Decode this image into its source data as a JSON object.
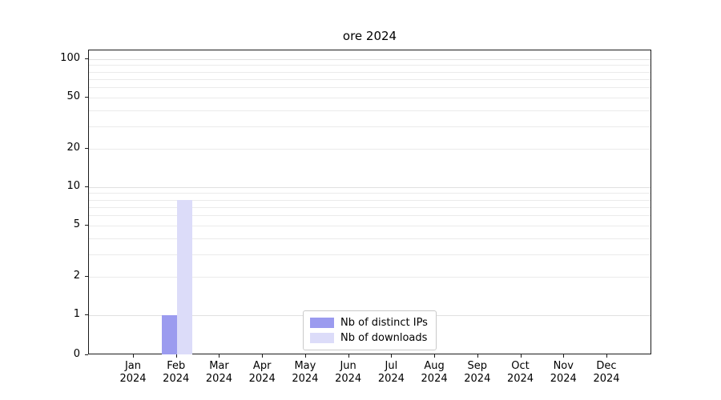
{
  "chart_data": {
    "type": "bar",
    "title": "ore 2024",
    "yscale": "symlog",
    "ylim": [
      0,
      110
    ],
    "yticks": [
      0,
      1,
      2,
      5,
      10,
      20,
      50,
      100
    ],
    "minor_grid": [
      2,
      3,
      4,
      5,
      6,
      7,
      8,
      9,
      20,
      30,
      40,
      50,
      60,
      70,
      80,
      90
    ],
    "major_grid": [
      1,
      10,
      100
    ],
    "x_ticklabels": [
      [
        "Jan",
        "2024"
      ],
      [
        "Feb",
        "2024"
      ],
      [
        "Mar",
        "2024"
      ],
      [
        "Apr",
        "2024"
      ],
      [
        "May",
        "2024"
      ],
      [
        "Jun",
        "2024"
      ],
      [
        "Jul",
        "2024"
      ],
      [
        "Aug",
        "2024"
      ],
      [
        "Sep",
        "2024"
      ],
      [
        "Oct",
        "2024"
      ],
      [
        "Nov",
        "2024"
      ],
      [
        "Dec",
        "2024"
      ]
    ],
    "series": [
      {
        "name": "Nb of distinct IPs",
        "color": "#9b9bef",
        "values": [
          0,
          1,
          0,
          0,
          0,
          0,
          0,
          0,
          0,
          0,
          0,
          0
        ]
      },
      {
        "name": "Nb of downloads",
        "color": "#dcdcf9",
        "values": [
          0,
          8,
          0,
          0,
          0,
          0,
          0,
          0,
          0,
          0,
          0,
          0
        ]
      }
    ],
    "legend": {
      "position": "lower center",
      "entries": [
        "Nb of distinct IPs",
        "Nb of downloads"
      ]
    }
  }
}
